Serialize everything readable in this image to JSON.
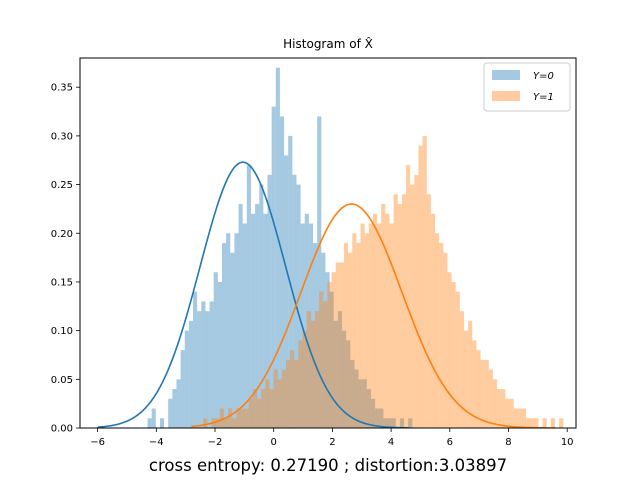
{
  "chart_data": {
    "type": "histogram",
    "title": "Histogram of X̂",
    "caption": "cross entropy: 0.27190 ; distortion:3.03897",
    "x_ticks": [
      "−6",
      "−4",
      "−2",
      "0",
      "2",
      "4",
      "6",
      "8",
      "10"
    ],
    "y_ticks": [
      "0.00",
      "0.05",
      "0.10",
      "0.15",
      "0.20",
      "0.25",
      "0.30",
      "0.35"
    ],
    "xlim": [
      -6.6,
      10.3
    ],
    "ylim": [
      0,
      0.38
    ],
    "grid": false,
    "legend_position": "top-right",
    "legend": [
      {
        "label": "Y=0",
        "color": "#1f77b4"
      },
      {
        "label": "Y=1",
        "color": "#ff7f0e"
      }
    ],
    "series": [
      {
        "name": "Y=0",
        "color": "#1f77b4",
        "bar_alpha": 0.4,
        "bins_start": -4.3,
        "bin_width": 0.141,
        "densities": [
          0.01,
          0.02,
          0.0,
          0.01,
          0.0,
          0.03,
          0.04,
          0.05,
          0.08,
          0.1,
          0.11,
          0.14,
          0.12,
          0.13,
          0.12,
          0.13,
          0.16,
          0.15,
          0.19,
          0.2,
          0.18,
          0.2,
          0.23,
          0.21,
          0.27,
          0.22,
          0.23,
          0.25,
          0.22,
          0.26,
          0.33,
          0.37,
          0.32,
          0.28,
          0.3,
          0.26,
          0.25,
          0.21,
          0.22,
          0.21,
          0.19,
          0.32,
          0.18,
          0.16,
          0.14,
          0.11,
          0.12,
          0.1,
          0.09,
          0.07,
          0.06,
          0.05,
          0.05,
          0.04,
          0.03,
          0.02,
          0.02,
          0.01,
          0.01,
          0.01,
          0.0,
          0.01,
          0.0,
          0.01
        ],
        "kde": {
          "mu": -1.05,
          "sigma": 1.46,
          "peak": 0.273,
          "x_range": [
            -6.0,
            4.6
          ]
        }
      },
      {
        "name": "Y=1",
        "color": "#ff7f0e",
        "bar_alpha": 0.4,
        "bins_start": -2.4,
        "bin_width": 0.141,
        "densities": [
          0.01,
          0.0,
          0.01,
          0.01,
          0.02,
          0.01,
          0.02,
          0.01,
          0.02,
          0.02,
          0.02,
          0.03,
          0.04,
          0.03,
          0.04,
          0.05,
          0.04,
          0.06,
          0.05,
          0.06,
          0.07,
          0.08,
          0.07,
          0.09,
          0.1,
          0.12,
          0.11,
          0.12,
          0.14,
          0.13,
          0.15,
          0.16,
          0.17,
          0.17,
          0.19,
          0.18,
          0.2,
          0.19,
          0.21,
          0.2,
          0.21,
          0.22,
          0.21,
          0.23,
          0.22,
          0.21,
          0.24,
          0.23,
          0.24,
          0.27,
          0.25,
          0.26,
          0.29,
          0.3,
          0.24,
          0.22,
          0.2,
          0.19,
          0.18,
          0.16,
          0.15,
          0.14,
          0.12,
          0.1,
          0.11,
          0.09,
          0.08,
          0.07,
          0.07,
          0.06,
          0.05,
          0.04,
          0.04,
          0.03,
          0.03,
          0.02,
          0.02,
          0.02,
          0.01,
          0.01,
          0.01,
          0.0,
          0.01,
          0.0,
          0.01,
          0.0,
          0.01
        ],
        "kde": {
          "mu": 2.65,
          "sigma": 1.72,
          "peak": 0.23,
          "x_range": [
            -2.8,
            9.6
          ]
        }
      }
    ]
  }
}
